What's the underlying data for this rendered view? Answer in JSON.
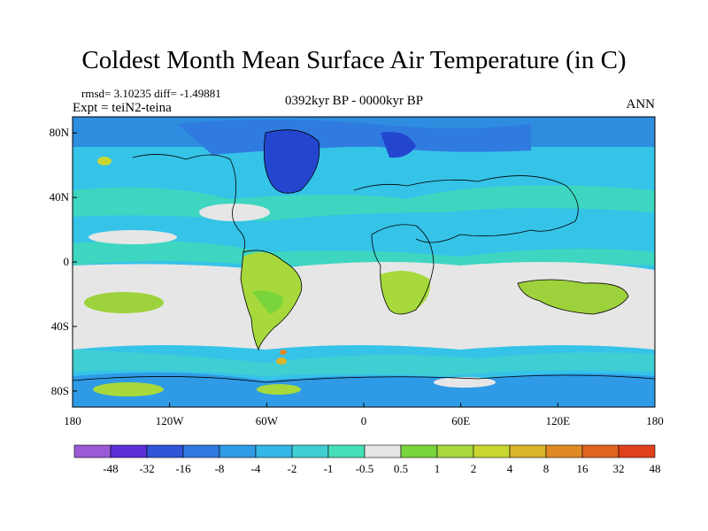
{
  "title": "Coldest Month Mean Surface Air Temperature (in C)",
  "stats": "rmsd= 3.10235 diff= -1.49881",
  "experiment": "Expt = teiN2-teina",
  "period": "0392kyr BP - 0000kyr BP",
  "season": "ANN",
  "lat_labels": [
    "80N",
    "40N",
    "0",
    "40S",
    "80S"
  ],
  "lon_labels": [
    "180",
    "120W",
    "60W",
    "0",
    "60E",
    "120E",
    "180"
  ],
  "colorbar": {
    "labels": [
      "-48",
      "-32",
      "-16",
      "-8",
      "-4",
      "-2",
      "-1",
      "-0.5",
      "0.5",
      "1",
      "2",
      "4",
      "8",
      "16",
      "32",
      "48"
    ],
    "colors": [
      "#9b59d6",
      "#5a2fd8",
      "#2f54d8",
      "#2f78e0",
      "#2f9be6",
      "#34b7e8",
      "#3fcfd2",
      "#46e0b8",
      "#e6e6e6",
      "#7ad43b",
      "#a7d93c",
      "#c9d632",
      "#d9b52a",
      "#e08a24",
      "#e06420",
      "#e0401c"
    ]
  },
  "map_colors": {
    "ocean_ice_blue": "#1f6fe0",
    "deep_blue": "#2440d0",
    "cyan": "#36c3e8",
    "teal": "#3ed6c0",
    "gray": "#e6e6e6",
    "green": "#9ed23c",
    "yellow": "#d6c534"
  }
}
